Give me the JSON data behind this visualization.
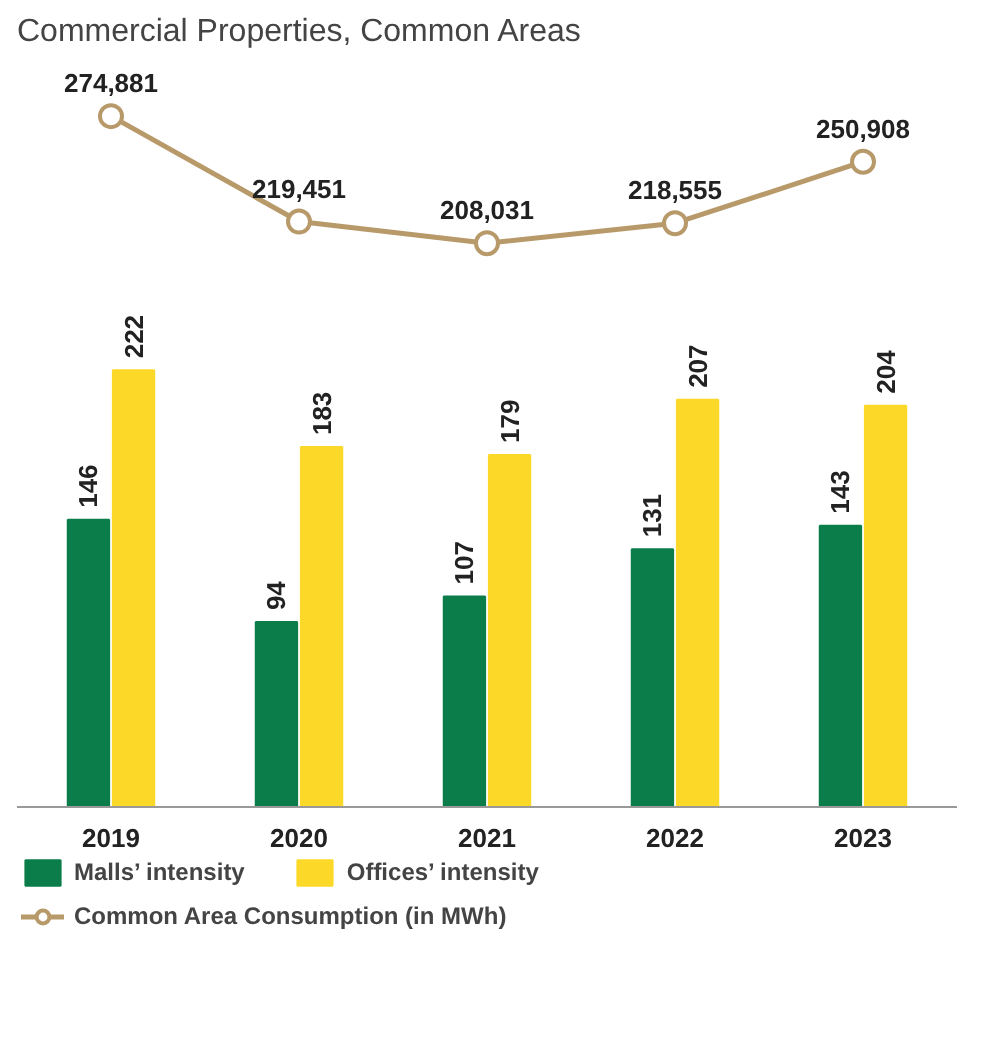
{
  "chart_data": [
    {
      "type": "line",
      "title": "Commercial Properties, Common Areas",
      "categories": [
        "2019",
        "2020",
        "2021",
        "2022",
        "2023"
      ],
      "tick_labels": false,
      "series": [
        {
          "name": "Common Area Consumption (in MWh)",
          "color": "#b89a6a",
          "values": [
            274881,
            219451,
            208031,
            218555,
            250908
          ],
          "value_labels": [
            "274,881",
            "219,451",
            "208,031",
            "218,555",
            "250,908"
          ]
        }
      ],
      "marker": "circle",
      "legend": "bottom"
    },
    {
      "type": "bar",
      "categories": [
        "2019",
        "2020",
        "2021",
        "2022",
        "2023"
      ],
      "series": [
        {
          "name": "Malls’ intensity",
          "color": "#0a7d4a",
          "values": [
            146,
            94,
            107,
            131,
            143
          ]
        },
        {
          "name": "Offices’ intensity",
          "color": "#fcd929",
          "values": [
            222,
            183,
            179,
            207,
            204
          ]
        }
      ],
      "data_labels": true,
      "legend": "bottom"
    }
  ]
}
